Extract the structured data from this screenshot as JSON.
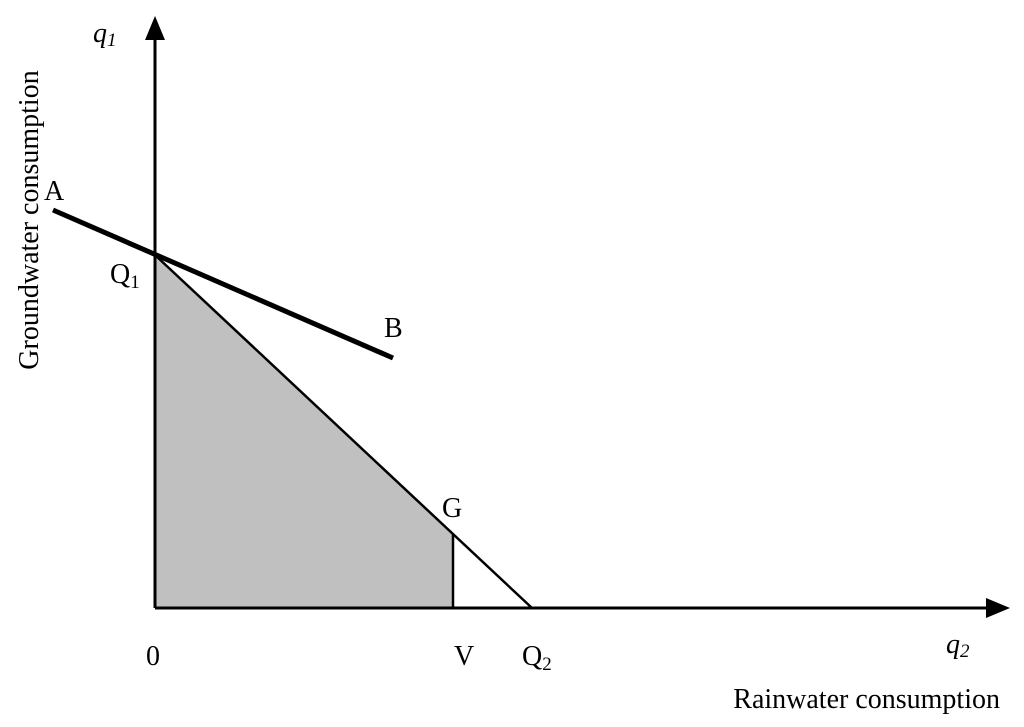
{
  "diagram": {
    "y_axis": {
      "symbol": {
        "base": "q",
        "sub": "1"
      },
      "label": "Groundwater consumption"
    },
    "x_axis": {
      "symbol": {
        "base": "q",
        "sub": "2"
      },
      "label": "Rainwater consumption"
    },
    "points": {
      "A": "A",
      "B": "B",
      "Q1": {
        "base": "Q",
        "sub": "1"
      },
      "G": "G",
      "origin": "0",
      "V": "V",
      "Q2": {
        "base": "Q",
        "sub": "2"
      }
    }
  }
}
